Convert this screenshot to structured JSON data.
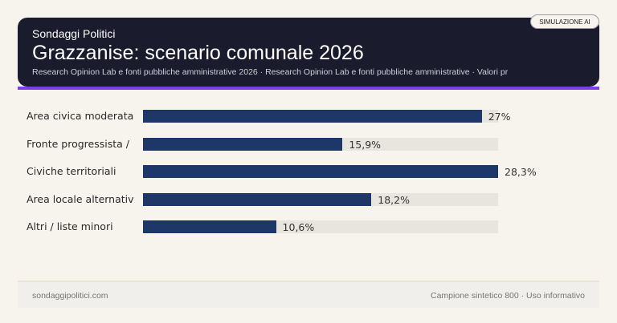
{
  "header": {
    "brand": "Sondaggi Politici",
    "title": "Grazzanise: scenario comunale 2026",
    "subtitle": "Research Opinion Lab e fonti pubbliche amministrative 2026 · Research Opinion Lab e fonti pubbliche amministrative · Valori pr",
    "badge": "SIMULAZIONE AI"
  },
  "colors": {
    "header_bg": "#1b1b2e",
    "accent": "#7b3fe4",
    "bar": "#1d3868",
    "track": "#e8e4de",
    "background": "#f7f3ed"
  },
  "chart_data": {
    "type": "bar",
    "orientation": "horizontal",
    "categories": [
      "Area civica moderata",
      "Fronte progressista /",
      "Civiche territoriali",
      "Area locale alternativ",
      "Altri / liste minori"
    ],
    "values": [
      27,
      15.9,
      28.3,
      18.2,
      10.6
    ],
    "labels": [
      "27%",
      "15,9%",
      "28,3%",
      "18,2%",
      "10,6%"
    ],
    "unit": "%",
    "xlim": [
      0,
      28.3
    ],
    "grid": false
  },
  "footer": {
    "left": "sondaggipolitici.com",
    "right": "Campione sintetico 800 · Uso informativo"
  }
}
